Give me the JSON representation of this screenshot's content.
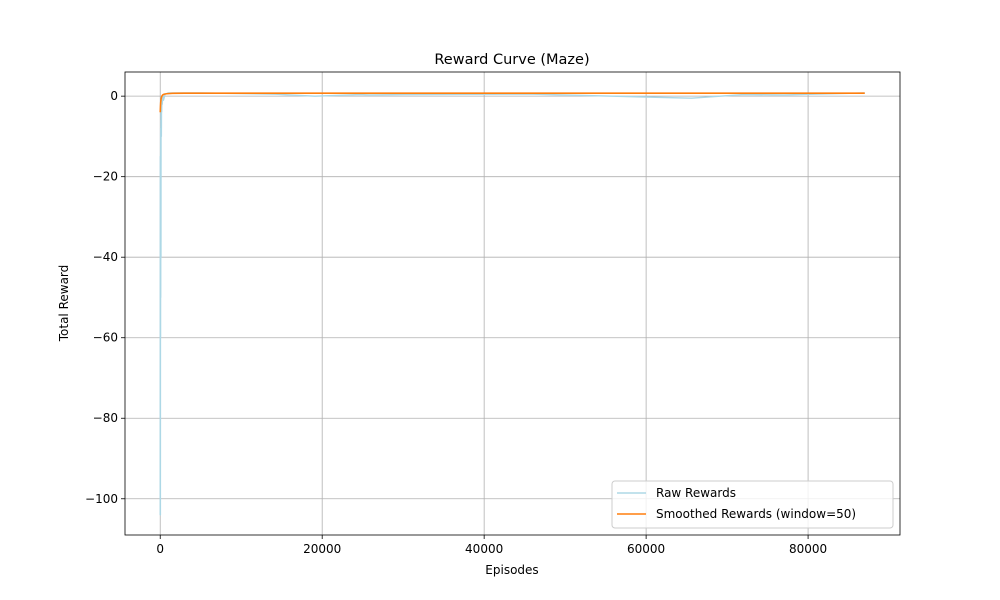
{
  "chart_data": {
    "type": "line",
    "title": "Reward Curve (Maze)",
    "xlabel": "Episodes",
    "ylabel": "Total Reward",
    "xlim": [
      -4350,
      91350
    ],
    "ylim": [
      -109,
      6
    ],
    "xticks": [
      0,
      20000,
      40000,
      60000,
      80000
    ],
    "xtick_labels": [
      "0",
      "20000",
      "40000",
      "60000",
      "80000"
    ],
    "yticks": [
      0,
      -20,
      -40,
      -60,
      -80,
      -100
    ],
    "ytick_labels": [
      "0",
      "−20",
      "−40",
      "−60",
      "−80",
      "−100"
    ],
    "grid": true,
    "legend": {
      "placement": "lower-right"
    },
    "series": [
      {
        "name": "Raw Rewards",
        "color": "#add8e6",
        "x": [
          0,
          10,
          20,
          30,
          40,
          50,
          60,
          70,
          80,
          90,
          100,
          120,
          140,
          160,
          180,
          200,
          250,
          300,
          400,
          600,
          1000,
          5000,
          14200,
          19100,
          24600,
          25800,
          30000,
          46000,
          51800,
          65600,
          72000,
          77000,
          87000
        ],
        "y": [
          -104,
          -15,
          -104,
          -30,
          -60,
          -8,
          -50,
          -20,
          -6,
          -40,
          -5,
          -3,
          -10,
          -2,
          -4,
          -1,
          -2,
          0,
          -1,
          0.5,
          0.8,
          0.8,
          0.5,
          0,
          0.4,
          0.3,
          0.4,
          0.5,
          0.2,
          -0.5,
          0.4,
          0.3,
          0.8
        ]
      },
      {
        "name": "Smoothed Rewards (window=50)",
        "color": "#ff7f0e",
        "x": [
          0,
          30,
          60,
          100,
          150,
          200,
          300,
          500,
          800,
          1500,
          3000,
          87000
        ],
        "y": [
          -4,
          -2.5,
          -1.5,
          -0.8,
          -0.3,
          0,
          0.3,
          0.5,
          0.6,
          0.7,
          0.75,
          0.75
        ]
      }
    ]
  }
}
